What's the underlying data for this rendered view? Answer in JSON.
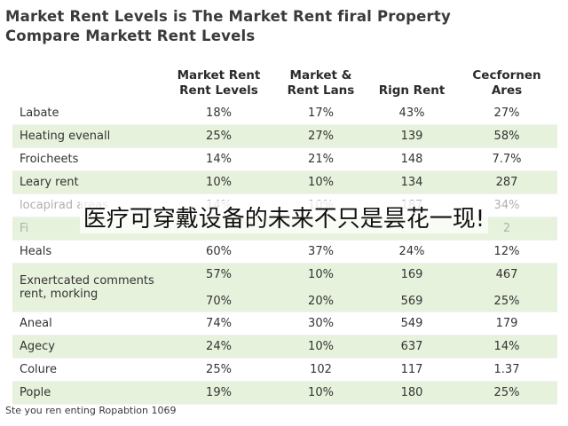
{
  "title": {
    "line1": "Market Rent Levels is The Market Rent firal Property",
    "line2": "Compare Markett Rent Levels"
  },
  "table": {
    "headers": [
      "",
      "Market Rent Rent Levels",
      "Market & Rent Lans",
      "Rign Rent",
      "Cecfornen Ares"
    ],
    "rows": [
      {
        "label": "Labate",
        "a": "18%",
        "b": "17%",
        "c": "43%",
        "d": "27%"
      },
      {
        "label": "Heating evenall",
        "a": "25%",
        "b": "27%",
        "c": "139",
        "d": "58%"
      },
      {
        "label": "Froicheets",
        "a": "14%",
        "b": "21%",
        "c": "148",
        "d": "7.7%"
      },
      {
        "label": "Leary rent",
        "a": "10%",
        "b": "10%",
        "c": "134",
        "d": "287"
      },
      {
        "label": "locapirad areas",
        "a": "14%",
        "b": "10%",
        "c": "187",
        "d": "34%"
      },
      {
        "label": "Fi",
        "a": "",
        "b": "",
        "c": "",
        "d": "2"
      },
      {
        "label": "Heals",
        "a": "60%",
        "b": "37%",
        "c": "24%",
        "d": "12%"
      },
      {
        "label": "Exnertcated comments rent, morking",
        "a": "57%\n\n70%",
        "b": "10%\n\n20%",
        "c": "169\n\n569",
        "d": "467\n\n25%"
      },
      {
        "label": "Aneal",
        "a": "74%",
        "b": "30%",
        "c": "549",
        "d": "179"
      },
      {
        "label": "Agecy",
        "a": "24%",
        "b": "10%",
        "c": "637",
        "d": "14%"
      },
      {
        "label": "Colure",
        "a": "25%",
        "b": "102",
        "c": "117",
        "d": "1.37"
      },
      {
        "label": "Pople",
        "a": "19%",
        "b": "10%",
        "c": "180",
        "d": "25%"
      }
    ]
  },
  "footnote": "Ste you ren enting Ropabtion 1069",
  "overlay_text": "医疗可穿戴设备的未来不只是昙花一现!"
}
